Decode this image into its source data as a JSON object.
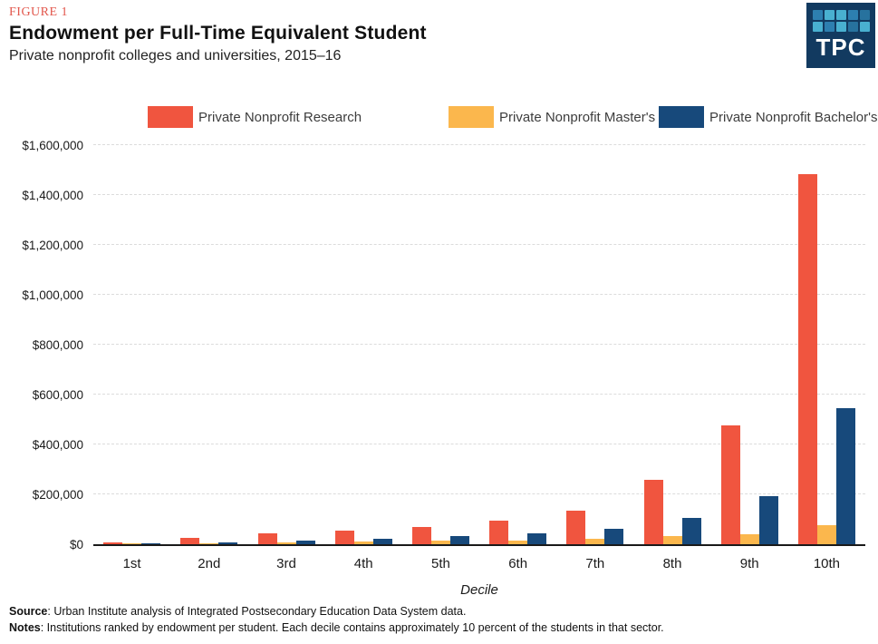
{
  "figure": {
    "label": "FIGURE 1",
    "title": "Endowment per Full-Time Equivalent Student",
    "subtitle": "Private nonprofit colleges and universities, 2015–16"
  },
  "logo": {
    "text": "TPC",
    "background": "#123a60",
    "square_colors": [
      "#2d7fb0",
      "#49b0d0",
      "#49b0d0",
      "#2d7fb0",
      "#27729e",
      "#49b0d0",
      "#2d7fb0",
      "#49b0d0",
      "#27729e",
      "#49b0d0"
    ]
  },
  "chart_data": {
    "type": "bar",
    "title": "Endowment per Full-Time Equivalent Student",
    "subtitle": "Private nonprofit colleges and universities, 2015–16",
    "categories": [
      "1st",
      "2nd",
      "3rd",
      "4th",
      "5th",
      "6th",
      "7th",
      "8th",
      "9th",
      "10th"
    ],
    "series": [
      {
        "name": "Private Nonprofit Research",
        "color": "#f0553f",
        "values": [
          8000,
          25000,
          42000,
          54000,
          69000,
          93000,
          136000,
          259000,
          478000,
          1482000
        ]
      },
      {
        "name": "Private Nonprofit Master's",
        "color": "#fbb74d",
        "values": [
          1000,
          4000,
          7000,
          10000,
          13000,
          15000,
          22000,
          32000,
          40000,
          78000
        ]
      },
      {
        "name": "Private Nonprofit Bachelor's",
        "color": "#17497b",
        "values": [
          2000,
          9000,
          15000,
          21000,
          32000,
          45000,
          62000,
          104000,
          192000,
          546000
        ]
      }
    ],
    "xlabel": "Decile",
    "ylabel": "",
    "ylim": [
      0,
      1600000
    ],
    "ytick_step": 200000,
    "ytick_labels": [
      "$1,600,000",
      "$1,400,000",
      "$1,200,000",
      "$1,000,000",
      "$800,000",
      "$600,000",
      "$400,000",
      "$200,000",
      "$0"
    ],
    "grid": "horizontal-dashed",
    "legend_position": "top"
  },
  "footer": {
    "source_label": "Source",
    "source_text": ": Urban Institute analysis of Integrated Postsecondary Education Data System data.",
    "notes_label": "Notes",
    "notes_text": ": Institutions ranked by endowment per student. Each decile contains approximately 10 percent of the students in that sector."
  }
}
